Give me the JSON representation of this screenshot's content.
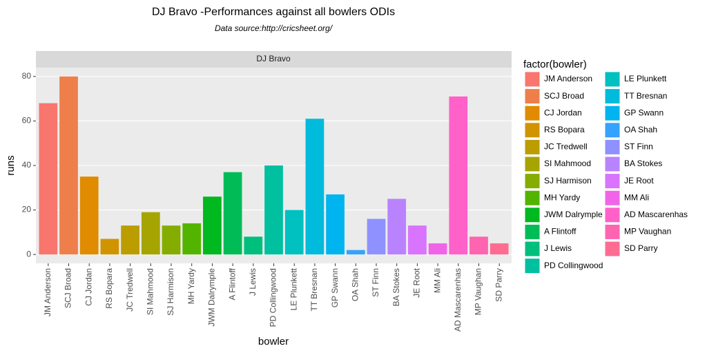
{
  "chart_data": {
    "type": "bar",
    "title": "DJ Bravo -Performances against all bowlers ODIs",
    "subtitle": "Data source:http://cricsheet.org/",
    "facet_label": "DJ Bravo",
    "xlabel": "bowler",
    "ylabel": "runs",
    "legend_title": "factor(bowler)",
    "categories": [
      "JM Anderson",
      "SCJ Broad",
      "CJ Jordan",
      "RS Bopara",
      "JC Tredwell",
      "SI Mahmood",
      "SJ Harmison",
      "MH Yardy",
      "JWM Dalrymple",
      "A Flintoff",
      "J Lewis",
      "PD Collingwood",
      "LE Plunkett",
      "TT Bresnan",
      "GP Swann",
      "OA Shah",
      "ST Finn",
      "BA Stokes",
      "JE Root",
      "MM Ali",
      "AD Mascarenhas",
      "MP Vaughan",
      "SD Parry"
    ],
    "values": [
      68,
      80,
      35,
      7,
      13,
      19,
      13,
      14,
      26,
      37,
      8,
      40,
      20,
      61,
      27,
      2,
      16,
      25,
      13,
      5,
      71,
      8,
      5
    ],
    "colors": [
      "#F8766D",
      "#EE7F4B",
      "#E08B00",
      "#D09400",
      "#BB9D00",
      "#A5A400",
      "#85AD00",
      "#53B400",
      "#00B81F",
      "#00BC56",
      "#00BF7D",
      "#00C0A0",
      "#00C0C0",
      "#00BBDC",
      "#00B4EF",
      "#35A2FF",
      "#8F91FF",
      "#B983FF",
      "#D874FD",
      "#F065E8",
      "#FF61C9",
      "#FF64B0",
      "#FF6C91"
    ],
    "ylim": [
      -4,
      84
    ],
    "yticks": [
      0,
      20,
      40,
      60,
      80
    ],
    "grid": true
  }
}
